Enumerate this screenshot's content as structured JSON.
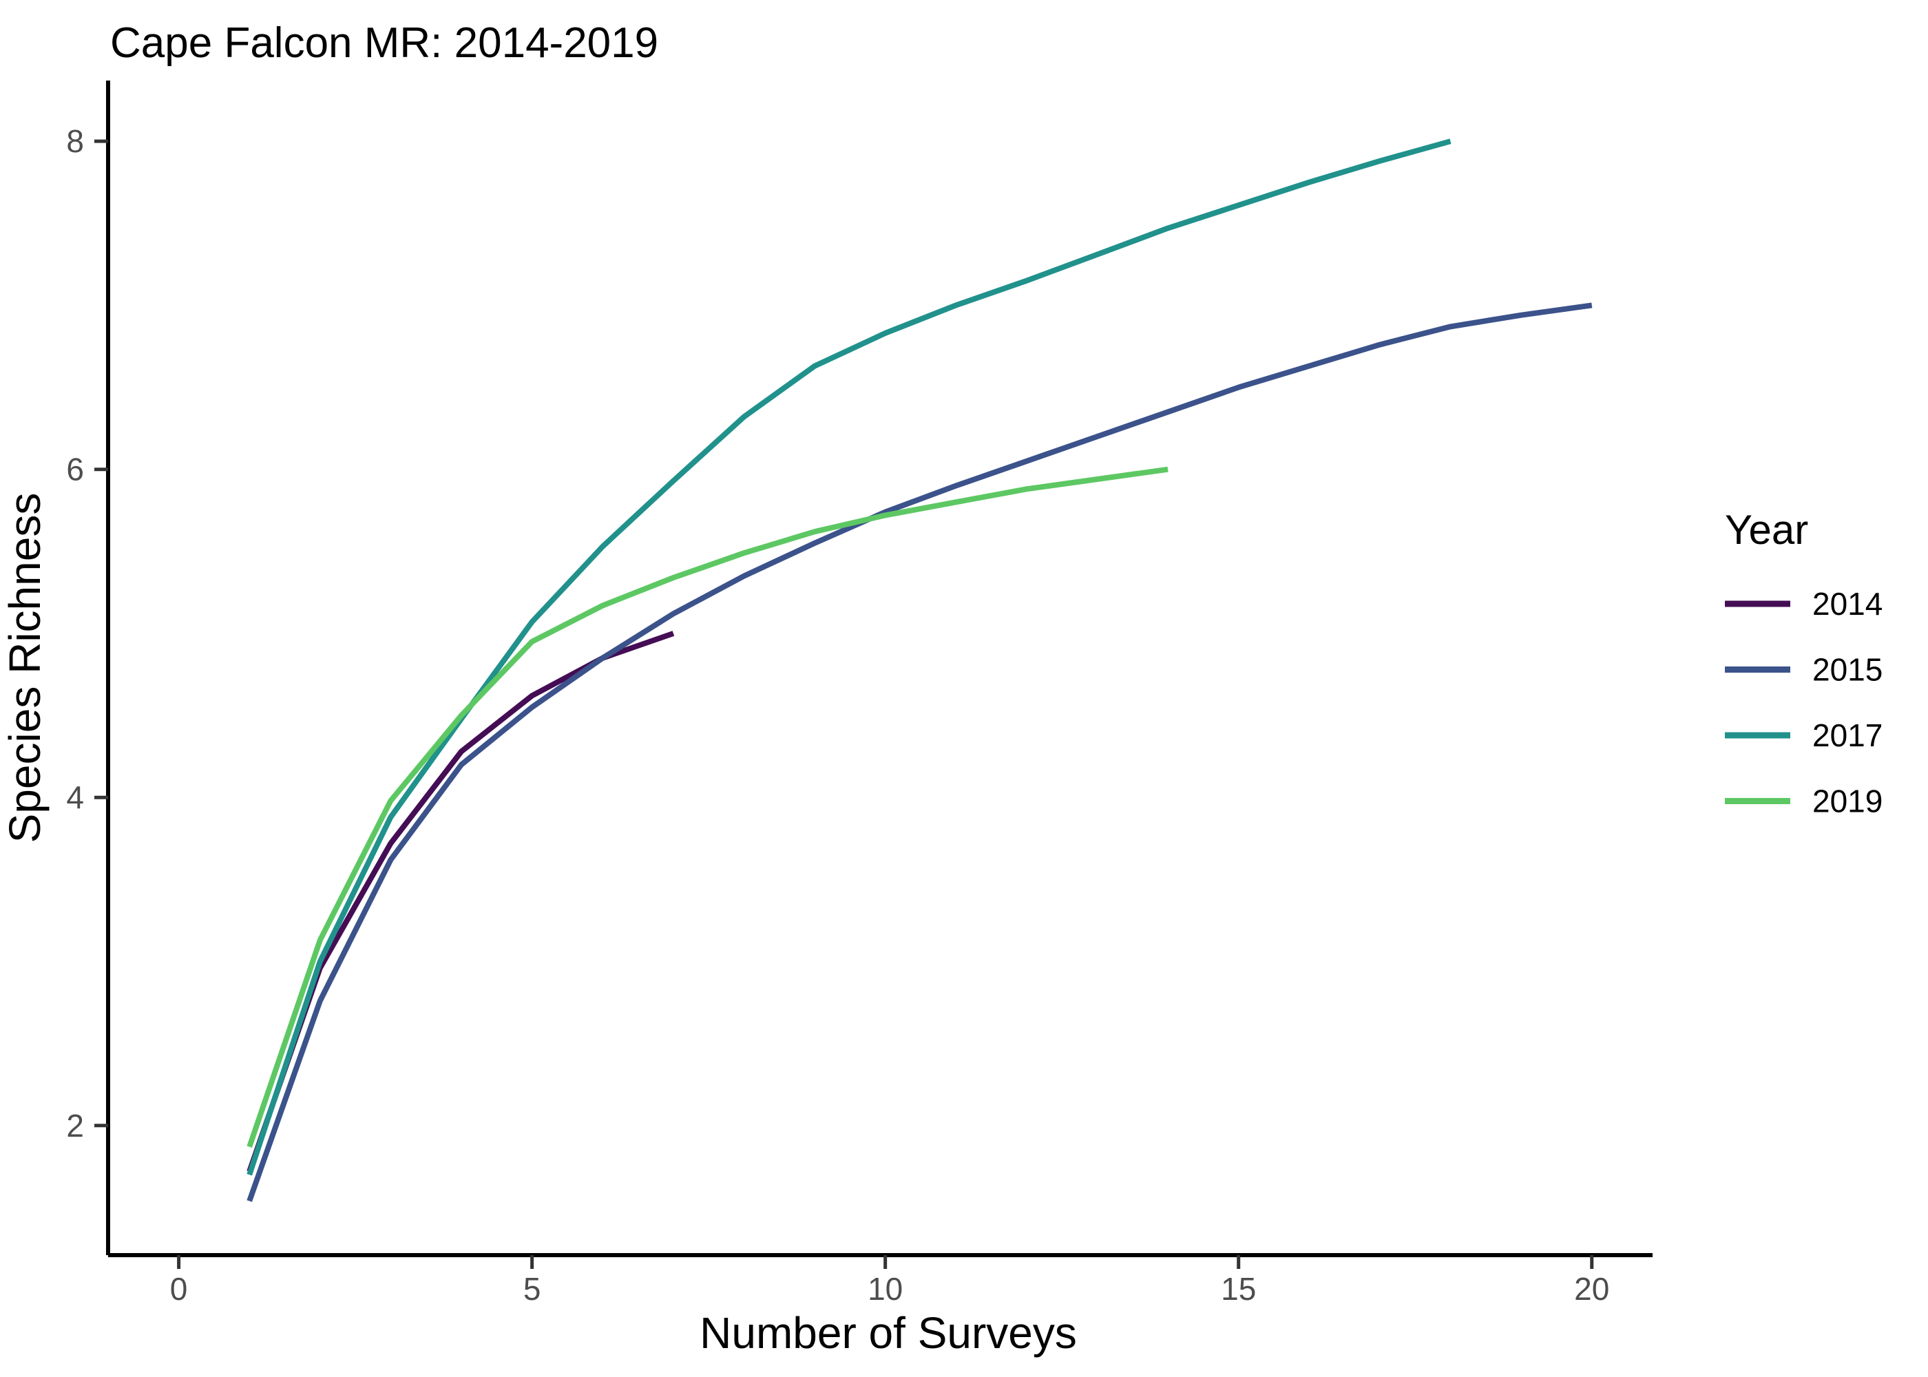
{
  "chart_data": {
    "type": "line",
    "title": "Cape Falcon MR: 2014-2019",
    "xlabel": "Number of Surveys",
    "ylabel": "Species Richness",
    "legend_title": "Year",
    "legend_position": "right",
    "grid": false,
    "x_ticks": [
      0,
      5,
      10,
      15,
      20
    ],
    "y_ticks": [
      2,
      4,
      6,
      8
    ],
    "xlim": [
      -1.0,
      20.86
    ],
    "ylim": [
      1.21,
      8.37
    ],
    "axis_color": "#000000",
    "tick_color": "#333333",
    "tick_label_color": "#4d4d4d",
    "series": [
      {
        "name": "2014",
        "color": "#440d54",
        "x": [
          1,
          2,
          3,
          4,
          5,
          6,
          7
        ],
        "values": [
          1.72,
          2.96,
          3.72,
          4.28,
          4.62,
          4.85,
          5.0
        ]
      },
      {
        "name": "2015",
        "color": "#3b528b",
        "x": [
          1,
          2,
          3,
          4,
          5,
          6,
          7,
          8,
          9,
          10,
          11,
          12,
          13,
          14,
          15,
          16,
          17,
          18,
          19,
          20
        ],
        "values": [
          1.54,
          2.76,
          3.62,
          4.2,
          4.55,
          4.85,
          5.12,
          5.35,
          5.55,
          5.74,
          5.9,
          6.05,
          6.2,
          6.35,
          6.5,
          6.63,
          6.76,
          6.87,
          6.94,
          7.0
        ]
      },
      {
        "name": "2017",
        "color": "#21918c",
        "x": [
          1,
          2,
          3,
          4,
          5,
          6,
          7,
          8,
          9,
          10,
          11,
          12,
          13,
          14,
          15,
          16,
          17,
          18
        ],
        "values": [
          1.7,
          3.0,
          3.88,
          4.48,
          5.07,
          5.53,
          5.93,
          6.32,
          6.63,
          6.83,
          7.0,
          7.15,
          7.31,
          7.47,
          7.61,
          7.75,
          7.88,
          8.0
        ]
      },
      {
        "name": "2019",
        "color": "#5dc863",
        "x": [
          1,
          2,
          3,
          4,
          5,
          6,
          7,
          8,
          9,
          10,
          11,
          12,
          13,
          14
        ],
        "values": [
          1.87,
          3.13,
          3.98,
          4.5,
          4.95,
          5.17,
          5.34,
          5.49,
          5.62,
          5.72,
          5.8,
          5.88,
          5.94,
          6.0
        ]
      }
    ]
  }
}
